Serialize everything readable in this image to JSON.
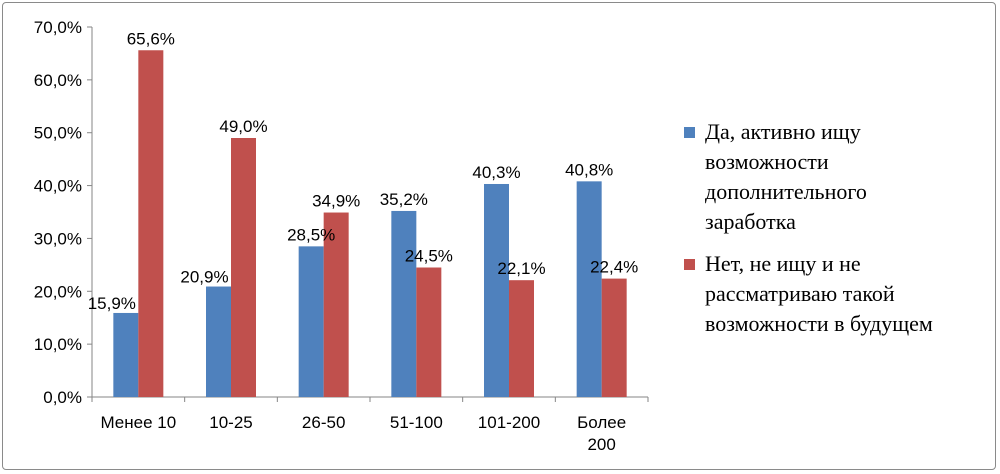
{
  "chart_data": {
    "type": "bar",
    "categories": [
      [
        "Менее 10"
      ],
      [
        "10-25"
      ],
      [
        "26-50"
      ],
      [
        "51-100"
      ],
      [
        "101-200"
      ],
      [
        "Более",
        "200"
      ]
    ],
    "series": [
      {
        "name": [
          "Да, активно ищу",
          "возможности",
          "дополнительного",
          "заработка"
        ],
        "color": "#4f81bd",
        "values": [
          15.9,
          20.9,
          28.5,
          35.2,
          40.3,
          40.8
        ],
        "labels": [
          "15,9%",
          "20,9%",
          "28,5%",
          "35,2%",
          "40,3%",
          "40,8%"
        ]
      },
      {
        "name": [
          "Нет, не ищу и не",
          "рассматриваю такой",
          "возможности в будущем"
        ],
        "color": "#c0504d",
        "values": [
          65.6,
          49.0,
          34.9,
          24.5,
          22.1,
          22.4
        ],
        "labels": [
          "65,6%",
          "49,0%",
          "34,9%",
          "24,5%",
          "22,1%",
          "22,4%"
        ]
      }
    ],
    "yticks": [
      "0,0%",
      "10,0%",
      "20,0%",
      "30,0%",
      "40,0%",
      "50,0%",
      "60,0%",
      "70,0%"
    ],
    "ylim": [
      0,
      70
    ],
    "grid": false,
    "legend": "right"
  }
}
